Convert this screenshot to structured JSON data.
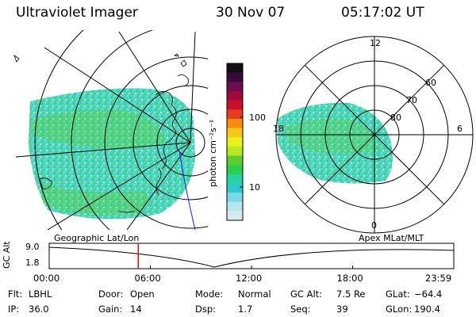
{
  "header": {
    "instrument": "Ultraviolet Imager",
    "date": "30 Nov 07",
    "time": "05:17:02 UT"
  },
  "colorbar": {
    "label": "photon cm⁻²s⁻¹",
    "ticks": [
      "100",
      "10"
    ],
    "colors": [
      "#101010",
      "#3a0a3e",
      "#6a0d52",
      "#9e0a3a",
      "#c8102a",
      "#e83c1e",
      "#f88a10",
      "#f5c81a",
      "#eaf01a",
      "#b8e81e",
      "#5ccc2e",
      "#2ad04c",
      "#26d2a0",
      "#2ecad0",
      "#7ad8e8",
      "#b8e6ee",
      "#d8ecf0"
    ]
  },
  "left_map": {
    "caption": "Geographic Lat/Lon"
  },
  "right_map": {
    "caption": "Apex  MLat/MLT",
    "mlt_labels": {
      "top": "12",
      "left": "18",
      "right": "6",
      "bottom": "0"
    },
    "lat_labels": [
      "60",
      "70",
      "80"
    ]
  },
  "altitude_plot": {
    "ylabel": "GC Alt",
    "yticks": [
      "9.0",
      "1.8"
    ],
    "xticks": [
      "00:00",
      "06:00",
      "12:00",
      "18:00",
      "23:59"
    ],
    "marker_time": "05:17",
    "marker_color": "#ff0000"
  },
  "status": {
    "row1": [
      {
        "label": "Flt:",
        "value": "LBHL"
      },
      {
        "label": "Door:",
        "value": "Open"
      },
      {
        "label": "Mode:",
        "value": "Normal"
      },
      {
        "label": "GC Alt:",
        "value": "7.5 Re"
      },
      {
        "label": "GLat:",
        "value": "−64.4"
      }
    ],
    "row2": [
      {
        "label": "IP:",
        "value": "36.0"
      },
      {
        "label": "Gain:",
        "value": "14"
      },
      {
        "label": "Dsp:",
        "value": "1.7"
      },
      {
        "label": "Seq:",
        "value": "39"
      },
      {
        "label": "GLon:",
        "value": "190.4"
      }
    ]
  }
}
